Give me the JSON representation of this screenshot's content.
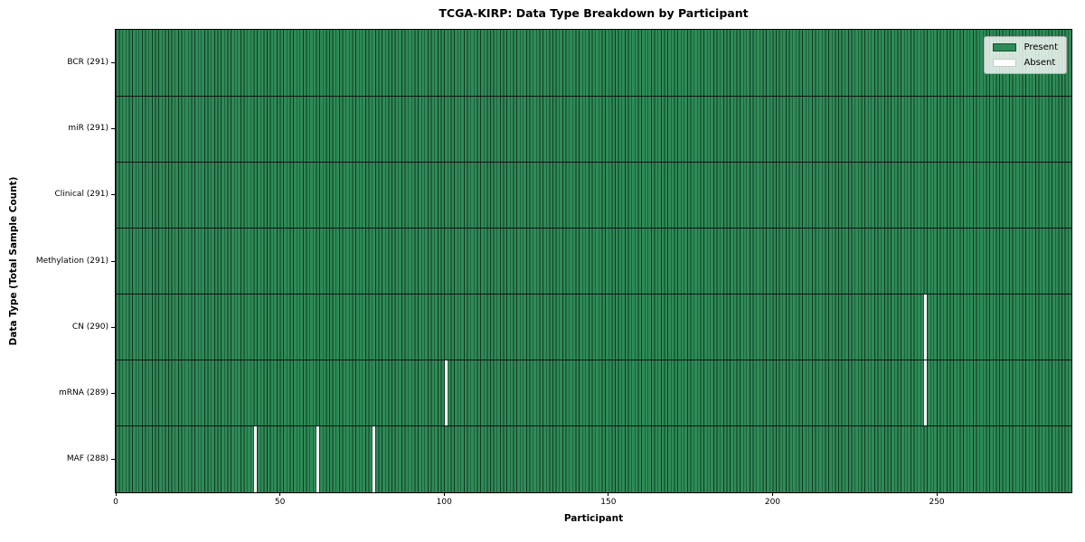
{
  "chart_data": {
    "type": "heatmap",
    "title": "TCGA-KIRP: Data Type Breakdown by Participant",
    "xlabel": "Participant",
    "ylabel": "Data Type (Total Sample Count)",
    "xlim": [
      0,
      291
    ],
    "x_ticks": [
      0,
      50,
      100,
      150,
      200,
      250
    ],
    "n_participants": 291,
    "legend": {
      "position": "upper right",
      "entries": [
        {
          "label": "Present",
          "state": "present"
        },
        {
          "label": "Absent",
          "state": "absent"
        }
      ]
    },
    "rows": [
      {
        "label": "BCR (291)",
        "total_samples": 291,
        "absent_participants": []
      },
      {
        "label": "miR (291)",
        "total_samples": 291,
        "absent_participants": []
      },
      {
        "label": "Clinical (291)",
        "total_samples": 291,
        "absent_participants": []
      },
      {
        "label": "Methylation (291)",
        "total_samples": 291,
        "absent_participants": []
      },
      {
        "label": "CN (290)",
        "total_samples": 290,
        "absent_participants": [
          246
        ]
      },
      {
        "label": "mRNA (289)",
        "total_samples": 289,
        "absent_participants": [
          100,
          246
        ]
      },
      {
        "label": "MAF (288)",
        "total_samples": 288,
        "absent_participants": [
          42,
          61,
          78
        ]
      }
    ],
    "colors": {
      "present": "#2e8b57",
      "absent": "#ffffff",
      "cell_border": "rgba(0,0,0,0.6)",
      "row_divider": "#111111",
      "axis": "#000000",
      "legend_bg": "rgba(255,255,255,0.8)",
      "legend_border": "#b0b0b0",
      "legend_present_edge": "rgba(0,0,0,0.45)",
      "legend_absent_edge": "#c9c9c9"
    },
    "grid": false
  }
}
